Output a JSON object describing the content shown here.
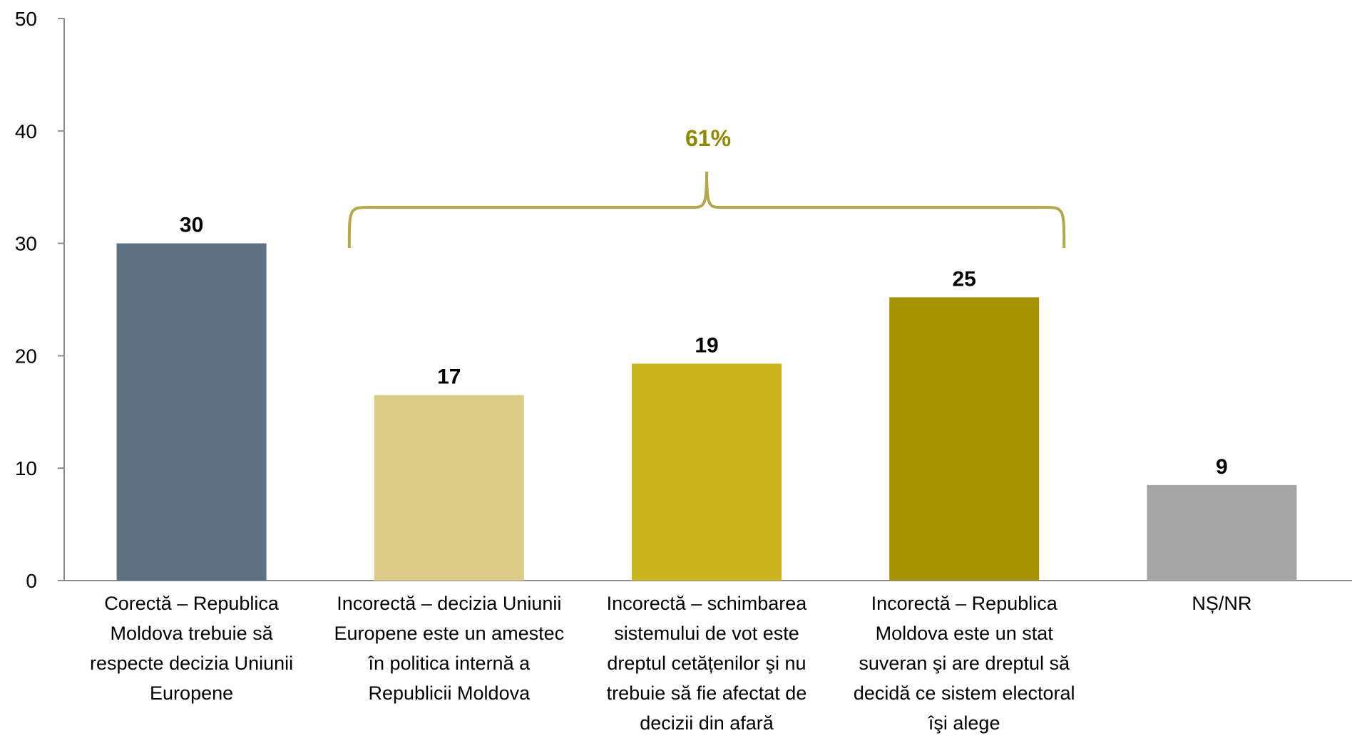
{
  "chart_data": {
    "type": "bar",
    "title": "",
    "xlabel": "",
    "ylabel": "",
    "ylim": [
      0,
      50
    ],
    "yticks": [
      "0",
      "10",
      "20",
      "30",
      "40",
      "50"
    ],
    "grid": false,
    "categories": [
      "Corectă – Republica Moldova trebuie să respecte decizia Uniunii Europene",
      "Incorectă – decizia Uniunii Europene este un amestec în politica internă a Republicii Moldova",
      "Incorectă – schimbarea sistemului de vot este dreptul cetățenilor şi nu trebuie să fie afectat de decizii din afară",
      "Incorectă – Republica Moldova este un stat suveran şi are dreptul să decidă ce sistem electoral îşi alege",
      "NȘ/NR"
    ],
    "values": [
      30,
      16.5,
      19.3,
      25.2,
      8.5
    ],
    "data_labels": [
      "30",
      "17",
      "19",
      "25",
      "9"
    ],
    "colors": [
      "#5e7283",
      "#dccc87",
      "#cbb520",
      "#a59400",
      "#a5a5a5"
    ],
    "annotation": {
      "text": "61%",
      "color": "#8f8800",
      "spans": [
        1,
        3
      ]
    }
  }
}
